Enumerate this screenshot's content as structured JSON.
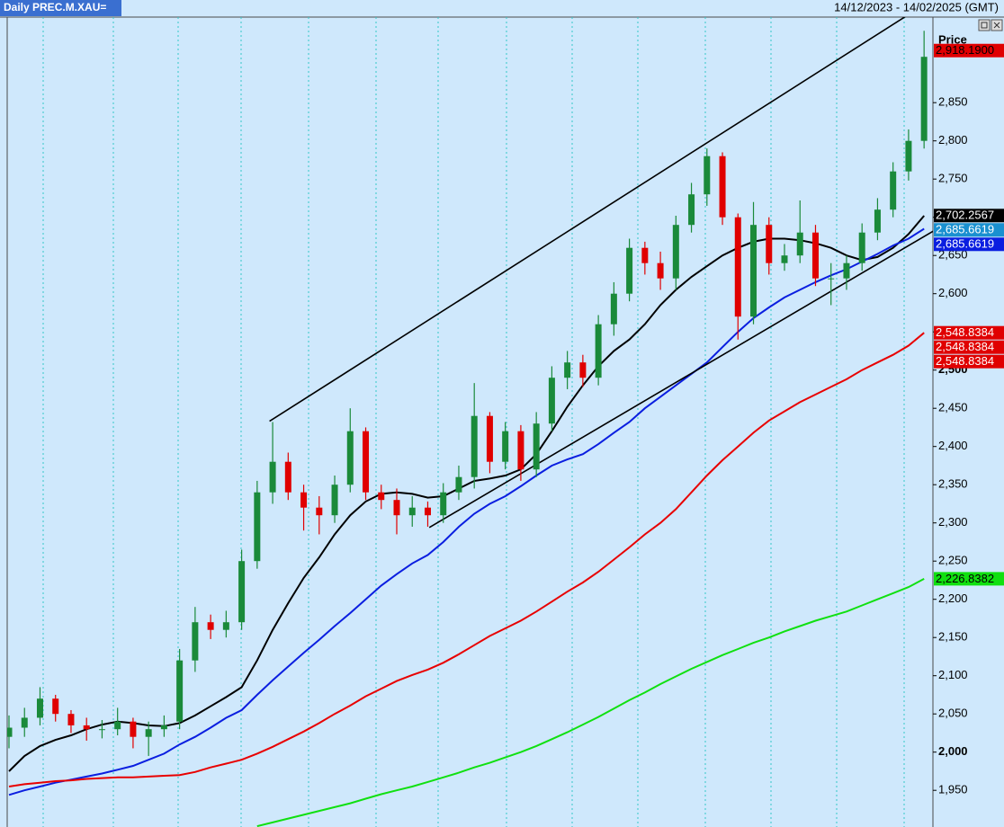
{
  "chart_data": {
    "type": "candlestick",
    "title": "Daily PREC.M.XAU=",
    "subtitle": "14/12/2023 - 14/02/2025 (GMT)",
    "y_axis_label": "Price",
    "ylim": [
      1902,
      2962
    ],
    "yticks": [
      {
        "value": 1950,
        "label": "1,950"
      },
      {
        "value": 2000,
        "label": "2,000"
      },
      {
        "value": 2050,
        "label": "2,050"
      },
      {
        "value": 2100,
        "label": "2,100"
      },
      {
        "value": 2150,
        "label": "2,150"
      },
      {
        "value": 2200,
        "label": "2,200"
      },
      {
        "value": 2250,
        "label": "2,250"
      },
      {
        "value": 2300,
        "label": "2,300"
      },
      {
        "value": 2350,
        "label": "2,350"
      },
      {
        "value": 2400,
        "label": "2,400"
      },
      {
        "value": 2450,
        "label": "2,450"
      },
      {
        "value": 2500,
        "label": "2,500"
      },
      {
        "value": 2550,
        "label": "2,550"
      },
      {
        "value": 2600,
        "label": "2,600"
      },
      {
        "value": 2650,
        "label": "2,650"
      },
      {
        "value": 2700,
        "label": "2,700"
      },
      {
        "value": 2750,
        "label": "2,750"
      },
      {
        "value": 2800,
        "label": "2,800"
      },
      {
        "value": 2850,
        "label": "2,850"
      }
    ],
    "up_color": "#1a8a3a",
    "down_color": "#e00000",
    "open": [
      2020,
      2032,
      2045,
      2070,
      2050,
      2035,
      2030,
      2030,
      2040,
      2020,
      2030,
      2040,
      2120,
      2170,
      2160,
      2170,
      2250,
      2340,
      2380,
      2340,
      2320,
      2310,
      2350,
      2420,
      2340,
      2330,
      2310,
      2320,
      2310,
      2340,
      2360,
      2440,
      2380,
      2420,
      2370,
      2430,
      2490,
      2510,
      2490,
      2560,
      2600,
      2660,
      2640,
      2620,
      2690,
      2730,
      2780,
      2700,
      2570,
      2690,
      2640,
      2650,
      2680,
      2620,
      2620,
      2640,
      2680,
      2710,
      2760,
      2800
    ],
    "high": [
      2048,
      2058,
      2085,
      2075,
      2055,
      2045,
      2042,
      2058,
      2045,
      2040,
      2048,
      2135,
      2190,
      2180,
      2185,
      2265,
      2355,
      2432,
      2392,
      2350,
      2335,
      2362,
      2450,
      2425,
      2350,
      2345,
      2335,
      2328,
      2352,
      2375,
      2483,
      2445,
      2432,
      2428,
      2445,
      2505,
      2525,
      2520,
      2572,
      2615,
      2672,
      2668,
      2655,
      2702,
      2745,
      2790,
      2785,
      2705,
      2720,
      2700,
      2665,
      2722,
      2690,
      2640,
      2650,
      2692,
      2725,
      2772,
      2815,
      2944
    ],
    "low": [
      2005,
      2020,
      2035,
      2040,
      2025,
      2015,
      2018,
      2022,
      2005,
      1995,
      2020,
      2030,
      2105,
      2148,
      2150,
      2160,
      2240,
      2325,
      2330,
      2290,
      2285,
      2300,
      2340,
      2330,
      2318,
      2285,
      2295,
      2295,
      2300,
      2330,
      2345,
      2365,
      2370,
      2355,
      2360,
      2420,
      2475,
      2478,
      2480,
      2545,
      2590,
      2625,
      2605,
      2605,
      2680,
      2715,
      2690,
      2540,
      2560,
      2625,
      2630,
      2640,
      2610,
      2585,
      2605,
      2630,
      2670,
      2700,
      2748,
      2790
    ],
    "close": [
      2032,
      2045,
      2070,
      2050,
      2035,
      2030,
      2030,
      2040,
      2020,
      2030,
      2035,
      2120,
      2170,
      2160,
      2170,
      2250,
      2340,
      2380,
      2340,
      2320,
      2310,
      2350,
      2420,
      2340,
      2330,
      2310,
      2320,
      2310,
      2340,
      2360,
      2440,
      2380,
      2420,
      2370,
      2430,
      2490,
      2510,
      2490,
      2560,
      2600,
      2660,
      2640,
      2620,
      2690,
      2730,
      2780,
      2700,
      2570,
      2690,
      2640,
      2650,
      2680,
      2620,
      2620,
      2640,
      2680,
      2710,
      2760,
      2800,
      2910
    ],
    "series": [
      {
        "color": "#000000",
        "values": [
          1975,
          1995,
          2008,
          2016,
          2022,
          2030,
          2036,
          2040,
          2038,
          2035,
          2034,
          2038,
          2048,
          2060,
          2072,
          2085,
          2120,
          2160,
          2195,
          2228,
          2255,
          2285,
          2310,
          2328,
          2338,
          2340,
          2338,
          2333,
          2335,
          2345,
          2355,
          2358,
          2362,
          2370,
          2390,
          2420,
          2452,
          2480,
          2505,
          2525,
          2540,
          2560,
          2585,
          2605,
          2622,
          2636,
          2650,
          2660,
          2668,
          2672,
          2672,
          2670,
          2666,
          2660,
          2650,
          2644,
          2648,
          2660,
          2678,
          2702
        ]
      },
      {
        "color": "#0a1ee0",
        "values": [
          1944,
          1950,
          1955,
          1960,
          1964,
          1968,
          1972,
          1977,
          1982,
          1990,
          1998,
          2010,
          2020,
          2032,
          2045,
          2055,
          2075,
          2094,
          2112,
          2130,
          2147,
          2165,
          2182,
          2200,
          2218,
          2233,
          2247,
          2258,
          2275,
          2295,
          2312,
          2325,
          2335,
          2348,
          2362,
          2375,
          2383,
          2390,
          2403,
          2418,
          2432,
          2450,
          2465,
          2480,
          2495,
          2510,
          2530,
          2550,
          2568,
          2582,
          2595,
          2605,
          2615,
          2624,
          2632,
          2642,
          2652,
          2663,
          2672,
          2685
        ]
      },
      {
        "color": "#e80000",
        "values": [
          1955,
          1958,
          1960,
          1962,
          1963,
          1965,
          1966,
          1967,
          1967,
          1968,
          1969,
          1970,
          1974,
          1980,
          1985,
          1990,
          1998,
          2007,
          2017,
          2027,
          2038,
          2050,
          2061,
          2073,
          2083,
          2093,
          2101,
          2108,
          2117,
          2128,
          2140,
          2152,
          2162,
          2172,
          2184,
          2197,
          2210,
          2222,
          2236,
          2252,
          2268,
          2285,
          2300,
          2318,
          2340,
          2362,
          2382,
          2400,
          2418,
          2434,
          2446,
          2458,
          2468,
          2478,
          2488,
          2500,
          2510,
          2520,
          2532,
          2548.8
        ]
      },
      {
        "color": "#10e010",
        "values": [
          null,
          null,
          null,
          null,
          null,
          null,
          null,
          null,
          null,
          null,
          null,
          null,
          null,
          null,
          null,
          null,
          1903,
          1908,
          1913,
          1918,
          1923,
          1928,
          1933,
          1939,
          1945,
          1950,
          1955,
          1961,
          1967,
          1973,
          1980,
          1986,
          1993,
          2000,
          2008,
          2017,
          2026,
          2036,
          2046,
          2057,
          2068,
          2078,
          2089,
          2099,
          2109,
          2118,
          2127,
          2135,
          2143,
          2150,
          2158,
          2165,
          2172,
          2178,
          2184,
          2192,
          2200,
          2208,
          2216,
          2226.8
        ]
      }
    ],
    "trendlines": [
      {
        "color": "#000000",
        "x": [
          16.8,
          57.9
        ],
        "values": [
          2433,
          2964
        ]
      },
      {
        "color": "#000000",
        "x": [
          27.1,
          59.6
        ],
        "values": [
          2294,
          2682
        ]
      }
    ],
    "price_labels": [
      {
        "value": 2918.19,
        "label": "2,918.1900",
        "color": "#e00000",
        "text_color": "#000000"
      },
      {
        "value": 2702.2567,
        "label": "2,702.2567",
        "color": "#000000",
        "text_color": "#ffffff"
      },
      {
        "value": 2685.6619,
        "label": "2,685.6619",
        "color": "#1a90d0",
        "text_color": "#ffffff"
      },
      {
        "value": 2685.6619,
        "label": "2,685.6619",
        "color": "#0a1ee0",
        "text_color": "#ffffff"
      },
      {
        "value": 2548.8384,
        "label": "2,548.8384",
        "color": "#e00000",
        "text_color": "#ffffff"
      },
      {
        "value": 2548.8384,
        "label": "2,548.8384",
        "color": "#e00000",
        "text_color": "#ffffff"
      },
      {
        "value": 2548.8384,
        "label": "2,548.8384",
        "color": "#e00000",
        "text_color": "#ffffff"
      },
      {
        "value": 2226.8382,
        "label": "2,226.8382",
        "color": "#10e010",
        "text_color": "#000000"
      }
    ]
  }
}
